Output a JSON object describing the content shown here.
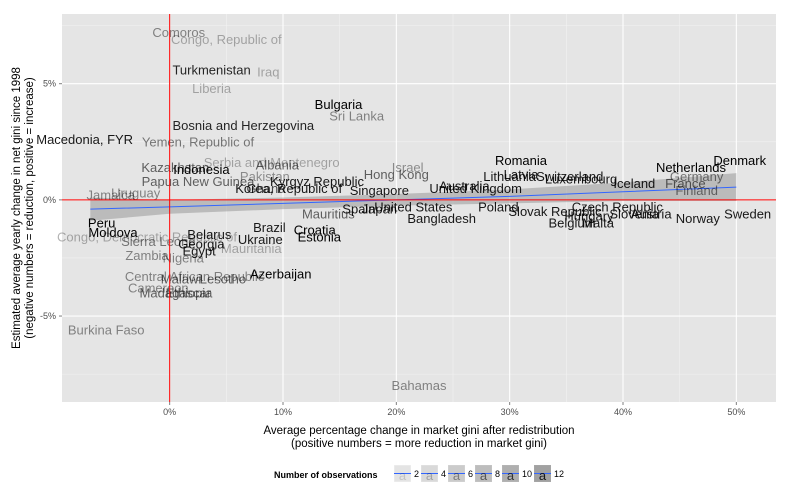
{
  "chart_data": {
    "type": "scatter",
    "title": "",
    "xlabel": [
      "Average percentage change in market gini after redistribution",
      "(positive numbers = more reduction in market gini)"
    ],
    "ylabel": [
      "Estimated average yearly change in net gini since 1998",
      "(negative numbers = reduction, positive = increase)"
    ],
    "xlim": [
      -0.095,
      0.535
    ],
    "ylim": [
      -0.087,
      0.08
    ],
    "x_ticks": [
      {
        "v": 0,
        "label": "0%"
      },
      {
        "v": 0.1,
        "label": "10%"
      },
      {
        "v": 0.2,
        "label": "20%"
      },
      {
        "v": 0.3,
        "label": "30%"
      },
      {
        "v": 0.4,
        "label": "40%"
      },
      {
        "v": 0.5,
        "label": "50%"
      }
    ],
    "y_ticks": [
      {
        "v": -0.05,
        "label": "-5%"
      },
      {
        "v": 0,
        "label": "0%"
      },
      {
        "v": 0.05,
        "label": "5%"
      }
    ],
    "grid": true,
    "reference_lines": {
      "x": 0,
      "y": 0,
      "color": "#ff0000"
    },
    "trend": {
      "x": [
        -0.07,
        0.0,
        0.1,
        0.2,
        0.3,
        0.4,
        0.5
      ],
      "y": [
        -0.004,
        -0.003,
        -0.0015,
        0.0,
        0.0015,
        0.0035,
        0.0055
      ],
      "band_half_width": [
        0.005,
        0.003,
        0.0025,
        0.0025,
        0.003,
        0.004,
        0.006
      ],
      "color": "#3366ff",
      "band_color": "#999999"
    },
    "legend": {
      "title": "Number of observations",
      "position": "bottom",
      "entries": [
        {
          "label": "2",
          "alpha": 0.15
        },
        {
          "label": "4",
          "alpha": 0.25
        },
        {
          "label": "6",
          "alpha": 0.4
        },
        {
          "label": "8",
          "alpha": 0.55
        },
        {
          "label": "10",
          "alpha": 0.7
        },
        {
          "label": "12",
          "alpha": 0.85
        }
      ]
    },
    "points": [
      {
        "label": "Comoros",
        "x": 0.008,
        "y": 0.072,
        "alpha": 0.45
      },
      {
        "label": "Congo, Republic of",
        "x": 0.05,
        "y": 0.069,
        "alpha": 0.3
      },
      {
        "label": "Turkmenistan",
        "x": 0.037,
        "y": 0.056,
        "alpha": 0.85
      },
      {
        "label": "Iraq",
        "x": 0.087,
        "y": 0.055,
        "alpha": 0.3
      },
      {
        "label": "Liberia",
        "x": 0.037,
        "y": 0.048,
        "alpha": 0.3
      },
      {
        "label": "Bulgaria",
        "x": 0.149,
        "y": 0.041,
        "alpha": 1.0
      },
      {
        "label": "Sri Lanka",
        "x": 0.165,
        "y": 0.036,
        "alpha": 0.45
      },
      {
        "label": "Bosnia and Herzegovina",
        "x": 0.065,
        "y": 0.032,
        "alpha": 0.85
      },
      {
        "label": "Macedonia, FYR",
        "x": -0.075,
        "y": 0.026,
        "alpha": 0.9
      },
      {
        "label": "Yemen, Republic of",
        "x": 0.025,
        "y": 0.025,
        "alpha": 0.5
      },
      {
        "label": "Serbia and Montenegro",
        "x": 0.09,
        "y": 0.016,
        "alpha": 0.3
      },
      {
        "label": "Albania",
        "x": 0.095,
        "y": 0.015,
        "alpha": 0.6
      },
      {
        "label": "Kazakhstan",
        "x": 0.005,
        "y": 0.014,
        "alpha": 0.6
      },
      {
        "label": "Indonesia",
        "x": 0.028,
        "y": 0.013,
        "alpha": 1.0
      },
      {
        "label": "Pakistan",
        "x": 0.084,
        "y": 0.01,
        "alpha": 0.4
      },
      {
        "label": "Israel",
        "x": 0.21,
        "y": 0.014,
        "alpha": 0.4
      },
      {
        "label": "Hong Kong",
        "x": 0.2,
        "y": 0.011,
        "alpha": 0.6
      },
      {
        "label": "Romania",
        "x": 0.31,
        "y": 0.017,
        "alpha": 1.0
      },
      {
        "label": "Netherlands",
        "x": 0.46,
        "y": 0.014,
        "alpha": 1.0
      },
      {
        "label": "Denmark",
        "x": 0.503,
        "y": 0.017,
        "alpha": 1.0
      },
      {
        "label": "Germany",
        "x": 0.465,
        "y": 0.01,
        "alpha": 0.5
      },
      {
        "label": "Latvia",
        "x": 0.31,
        "y": 0.011,
        "alpha": 0.9
      },
      {
        "label": "Switzerland",
        "x": 0.353,
        "y": 0.01,
        "alpha": 0.9
      },
      {
        "label": "Lithuania",
        "x": 0.3,
        "y": 0.01,
        "alpha": 0.9
      },
      {
        "label": "Luxembourg",
        "x": 0.363,
        "y": 0.009,
        "alpha": 0.9
      },
      {
        "label": "Iceland",
        "x": 0.41,
        "y": 0.007,
        "alpha": 0.9
      },
      {
        "label": "France",
        "x": 0.455,
        "y": 0.007,
        "alpha": 0.6
      },
      {
        "label": "Australia",
        "x": 0.26,
        "y": 0.006,
        "alpha": 0.9
      },
      {
        "label": "United Kingdom",
        "x": 0.27,
        "y": 0.005,
        "alpha": 0.9
      },
      {
        "label": "Finland",
        "x": 0.465,
        "y": 0.004,
        "alpha": 0.5
      },
      {
        "label": "Singapore",
        "x": 0.185,
        "y": 0.004,
        "alpha": 0.9
      },
      {
        "label": "Kyrgyz Republic",
        "x": 0.13,
        "y": 0.008,
        "alpha": 0.9
      },
      {
        "label": "Papua New Guinea",
        "x": 0.025,
        "y": 0.008,
        "alpha": 0.6
      },
      {
        "label": "Ghana",
        "x": 0.085,
        "y": 0.005,
        "alpha": 0.7
      },
      {
        "label": "Korea, Republic of",
        "x": 0.105,
        "y": 0.005,
        "alpha": 0.9
      },
      {
        "label": "Jamaica",
        "x": -0.052,
        "y": 0.002,
        "alpha": 0.45
      },
      {
        "label": "Uruguay",
        "x": -0.03,
        "y": 0.003,
        "alpha": 0.45
      },
      {
        "label": "Peru",
        "x": -0.06,
        "y": -0.01,
        "alpha": 1.0
      },
      {
        "label": "Moldova",
        "x": -0.05,
        "y": -0.014,
        "alpha": 1.0
      },
      {
        "label": "Congo, Democratic Republic of",
        "x": -0.02,
        "y": -0.016,
        "alpha": 0.3
      },
      {
        "label": "Sierra Leone",
        "x": -0.01,
        "y": -0.018,
        "alpha": 0.5
      },
      {
        "label": "Mauritius",
        "x": 0.14,
        "y": -0.006,
        "alpha": 0.6
      },
      {
        "label": "Spain",
        "x": 0.167,
        "y": -0.004,
        "alpha": 0.9
      },
      {
        "label": "Japan",
        "x": 0.185,
        "y": -0.004,
        "alpha": 0.9
      },
      {
        "label": "United States",
        "x": 0.215,
        "y": -0.003,
        "alpha": 0.9
      },
      {
        "label": "Bangladesh",
        "x": 0.24,
        "y": -0.008,
        "alpha": 0.9
      },
      {
        "label": "Poland",
        "x": 0.29,
        "y": -0.003,
        "alpha": 0.9
      },
      {
        "label": "Slovak Republic",
        "x": 0.34,
        "y": -0.005,
        "alpha": 0.9
      },
      {
        "label": "Czech Republic",
        "x": 0.395,
        "y": -0.003,
        "alpha": 0.9
      },
      {
        "label": "Slovenia",
        "x": 0.41,
        "y": -0.006,
        "alpha": 0.9
      },
      {
        "label": "Hungary",
        "x": 0.37,
        "y": -0.007,
        "alpha": 0.9
      },
      {
        "label": "Belgium",
        "x": 0.355,
        "y": -0.01,
        "alpha": 0.9
      },
      {
        "label": "Malta",
        "x": 0.378,
        "y": -0.01,
        "alpha": 0.9
      },
      {
        "label": "Austria",
        "x": 0.425,
        "y": -0.006,
        "alpha": 0.9
      },
      {
        "label": "Norway",
        "x": 0.466,
        "y": -0.008,
        "alpha": 0.9
      },
      {
        "label": "Sweden",
        "x": 0.51,
        "y": -0.006,
        "alpha": 0.9
      },
      {
        "label": "Croatia",
        "x": 0.128,
        "y": -0.013,
        "alpha": 1.0
      },
      {
        "label": "Estonia",
        "x": 0.132,
        "y": -0.016,
        "alpha": 1.0
      },
      {
        "label": "Brazil",
        "x": 0.088,
        "y": -0.012,
        "alpha": 0.9
      },
      {
        "label": "Ukraine",
        "x": 0.08,
        "y": -0.017,
        "alpha": 0.9
      },
      {
        "label": "Mauritania",
        "x": 0.072,
        "y": -0.021,
        "alpha": 0.3
      },
      {
        "label": "Belarus",
        "x": 0.035,
        "y": -0.015,
        "alpha": 0.9
      },
      {
        "label": "Georgia",
        "x": 0.028,
        "y": -0.019,
        "alpha": 0.9
      },
      {
        "label": "Egypt",
        "x": 0.026,
        "y": -0.022,
        "alpha": 0.9
      },
      {
        "label": "Zambia",
        "x": -0.02,
        "y": -0.024,
        "alpha": 0.45
      },
      {
        "label": "Nigeria",
        "x": 0.012,
        "y": -0.025,
        "alpha": 0.45
      },
      {
        "label": "Azerbaijan",
        "x": 0.098,
        "y": -0.032,
        "alpha": 1.0
      },
      {
        "label": "Central African Republic",
        "x": 0.022,
        "y": -0.033,
        "alpha": 0.45
      },
      {
        "label": "Lesotho",
        "x": 0.047,
        "y": -0.034,
        "alpha": 0.6
      },
      {
        "label": "Cameroon",
        "x": -0.01,
        "y": -0.038,
        "alpha": 0.45
      },
      {
        "label": "Malawi",
        "x": 0.01,
        "y": -0.034,
        "alpha": 0.6
      },
      {
        "label": "Madagascar",
        "x": 0.005,
        "y": -0.04,
        "alpha": 0.6
      },
      {
        "label": "Ethiopia",
        "x": 0.017,
        "y": -0.04,
        "alpha": 0.6
      },
      {
        "label": "Burkina Faso",
        "x": -0.056,
        "y": -0.056,
        "alpha": 0.45
      },
      {
        "label": "Bahamas",
        "x": 0.22,
        "y": -0.08,
        "alpha": 0.45
      }
    ]
  }
}
